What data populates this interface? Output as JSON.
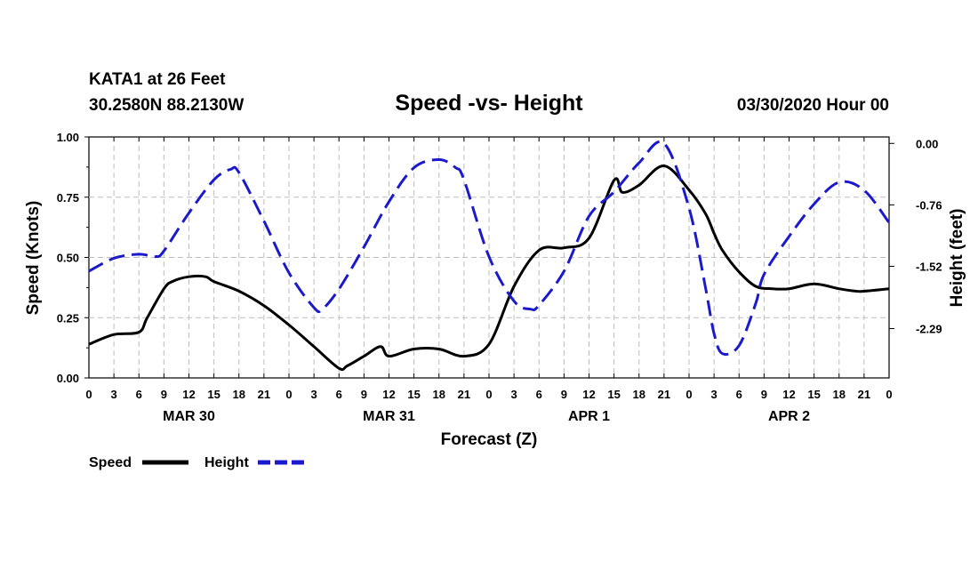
{
  "header": {
    "station": "KATA1 at 26 Feet",
    "coords": "30.2580N 88.2130W",
    "title": "Speed -vs- Height",
    "datetime": "03/30/2020 Hour 00"
  },
  "legend": {
    "speed_label": "Speed",
    "height_label": "Height"
  },
  "chart_data": {
    "type": "line",
    "title": "Speed -vs- Height",
    "xlabel": "Forecast (Z)",
    "ylabel": "Speed (Knots)",
    "y2label": "Height (feet)",
    "x_range_hours": [
      0,
      96
    ],
    "ylim": [
      0,
      1.0
    ],
    "y2lim": [
      -2.9,
      0.08
    ],
    "y_ticks": [
      "1.00",
      "0.75",
      "0.50",
      "0.25",
      "0.00"
    ],
    "y2_ticks": [
      "0.00",
      "-0.76",
      "-1.52",
      "-2.29"
    ],
    "x_tick_labels": [
      "0",
      "3",
      "6",
      "9",
      "12",
      "15",
      "18",
      "21",
      "0",
      "3",
      "6",
      "9",
      "12",
      "15",
      "18",
      "21",
      "0",
      "3",
      "6",
      "9",
      "12",
      "15",
      "18",
      "21",
      "0",
      "3",
      "6",
      "9",
      "12",
      "15",
      "18",
      "21",
      "0"
    ],
    "day_labels": [
      "MAR 30",
      "MAR 31",
      "APR 1",
      "APR 2"
    ],
    "grid": true,
    "colors": {
      "speed": "#000000",
      "height": "#1a1acc"
    },
    "series": [
      {
        "name": "Speed",
        "axis": "left",
        "style": "solid",
        "x": [
          0,
          3,
          6,
          7,
          9,
          10,
          12,
          14,
          15,
          18,
          21,
          24,
          27,
          30,
          31,
          33,
          35,
          36,
          39,
          42,
          45,
          48,
          51,
          54,
          57,
          60,
          63,
          64,
          66,
          69,
          72,
          74,
          75,
          76,
          78,
          80,
          82,
          84,
          87,
          90,
          92,
          93,
          96
        ],
        "values": [
          0.14,
          0.18,
          0.19,
          0.25,
          0.37,
          0.4,
          0.42,
          0.42,
          0.4,
          0.36,
          0.3,
          0.22,
          0.13,
          0.04,
          0.05,
          0.09,
          0.13,
          0.09,
          0.12,
          0.12,
          0.09,
          0.14,
          0.38,
          0.53,
          0.54,
          0.58,
          0.82,
          0.77,
          0.8,
          0.88,
          0.78,
          0.68,
          0.6,
          0.53,
          0.44,
          0.38,
          0.37,
          0.37,
          0.39,
          0.37,
          0.36,
          0.36,
          0.37
        ]
      },
      {
        "name": "Height",
        "axis": "right",
        "style": "dashed",
        "x": [
          0,
          3,
          6,
          8,
          9,
          12,
          15,
          17,
          18,
          21,
          24,
          27,
          28,
          30,
          33,
          36,
          39,
          42,
          44,
          45,
          48,
          51,
          53,
          54,
          57,
          60,
          63,
          66,
          69,
          72,
          74,
          75,
          76,
          78,
          80,
          81,
          84,
          87,
          90,
          93,
          96
        ],
        "values": [
          -1.58,
          -1.42,
          -1.37,
          -1.4,
          -1.33,
          -0.86,
          -0.45,
          -0.32,
          -0.36,
          -0.96,
          -1.6,
          -2.03,
          -2.05,
          -1.8,
          -1.28,
          -0.72,
          -0.3,
          -0.2,
          -0.3,
          -0.45,
          -1.4,
          -1.95,
          -2.05,
          -2.0,
          -1.58,
          -0.9,
          -0.6,
          -0.24,
          0.0,
          -0.8,
          -1.8,
          -2.35,
          -2.6,
          -2.5,
          -1.98,
          -1.62,
          -1.15,
          -0.75,
          -0.48,
          -0.58,
          -0.98
        ]
      }
    ]
  }
}
